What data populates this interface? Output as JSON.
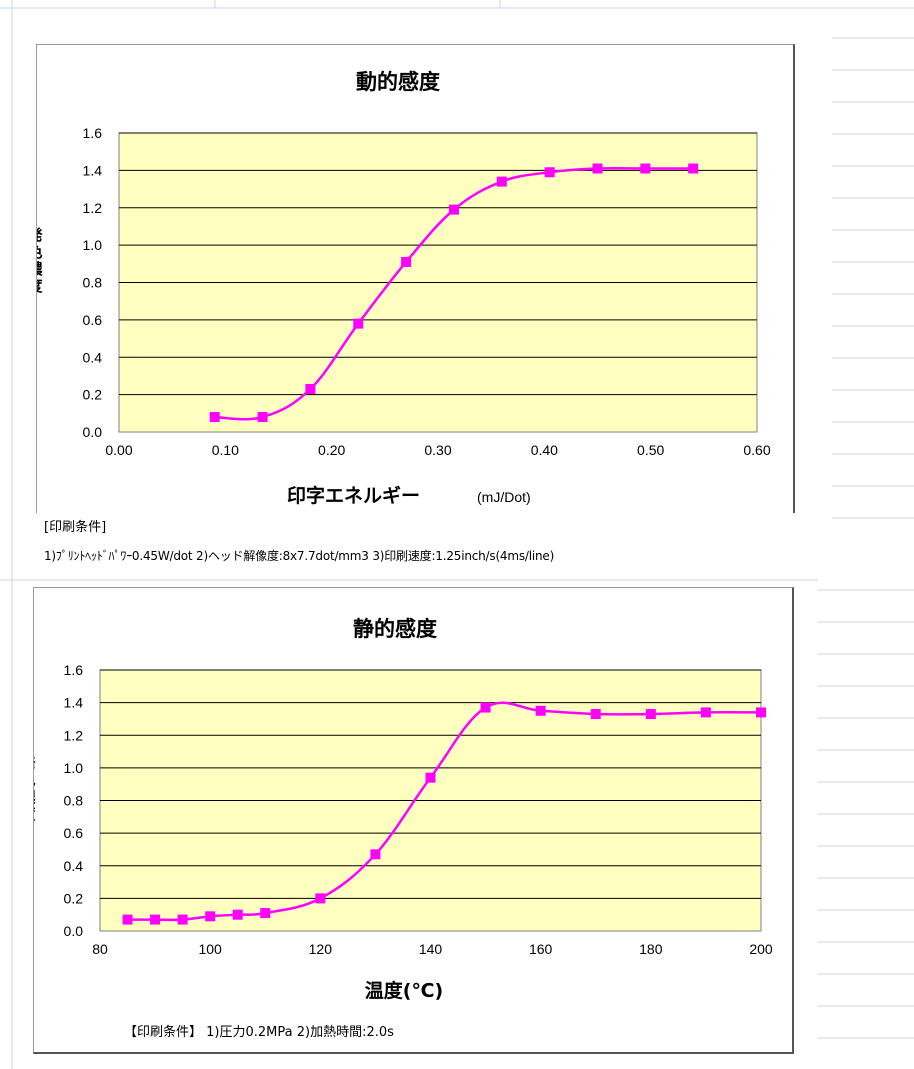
{
  "chart_data": [
    {
      "type": "line",
      "title": "動的感度",
      "xlabel": "印字エネルギー",
      "xunit": "(mJ/Dot)",
      "ylabel": "発色濃度",
      "xlim": [
        0.0,
        0.6
      ],
      "ylim": [
        0.0,
        1.6
      ],
      "xticks": [
        "0.00",
        "0.10",
        "0.20",
        "0.30",
        "0.40",
        "0.50",
        "0.60"
      ],
      "yticks": [
        "0.0",
        "0.2",
        "0.4",
        "0.6",
        "0.8",
        "1.0",
        "1.2",
        "1.4",
        "1.6"
      ],
      "grid": true,
      "plot_bg": "#ffffc0",
      "series": [
        {
          "color": "#ff00ff",
          "x": [
            0.09,
            0.135,
            0.18,
            0.225,
            0.27,
            0.315,
            0.36,
            0.405,
            0.45,
            0.495,
            0.54
          ],
          "y": [
            0.08,
            0.08,
            0.23,
            0.58,
            0.91,
            1.19,
            1.34,
            1.39,
            1.41,
            1.41,
            1.41
          ]
        }
      ]
    },
    {
      "type": "line",
      "title": "静的感度",
      "xlabel": "温度(℃)",
      "ylabel": "発色濃度",
      "xlim": [
        80,
        200
      ],
      "ylim": [
        0.0,
        1.6
      ],
      "xticks": [
        "80",
        "100",
        "120",
        "140",
        "160",
        "180",
        "200"
      ],
      "yticks": [
        "0.0",
        "0.2",
        "0.4",
        "0.6",
        "0.8",
        "1.0",
        "1.2",
        "1.4",
        "1.6"
      ],
      "grid": true,
      "plot_bg": "#ffffc0",
      "series": [
        {
          "color": "#ff00ff",
          "x": [
            85,
            90,
            95,
            100,
            105,
            110,
            120,
            130,
            140,
            150,
            160,
            170,
            180,
            190,
            200
          ],
          "y": [
            0.07,
            0.07,
            0.07,
            0.09,
            0.1,
            0.11,
            0.2,
            0.47,
            0.94,
            1.37,
            1.35,
            1.33,
            1.33,
            1.34,
            1.34
          ]
        }
      ]
    }
  ],
  "notes": {
    "chart1_head": "[印刷条件]",
    "chart1_body": "1)ﾌﾟﾘﾝﾄﾍｯﾄﾞﾊﾟﾜｰ0.45W/dot 2)ヘッド解像度:8x7.7dot/mm3 3)印刷速度:1.25inch/s(4ms/line)",
    "chart2": "【印刷条件】 1)圧力0.2MPa 2)加熱時間:2.0s"
  }
}
